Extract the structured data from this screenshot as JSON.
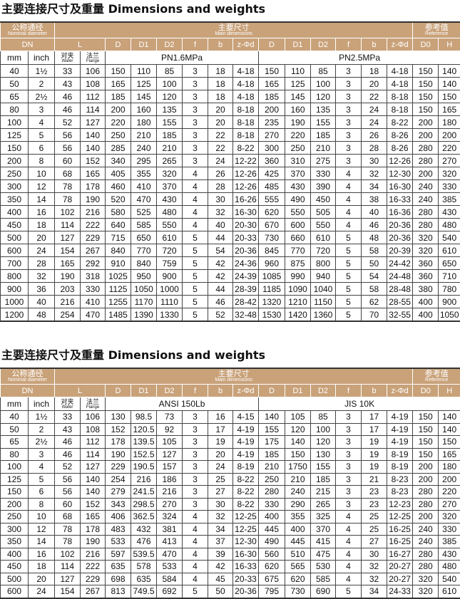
{
  "table1": {
    "title": "主要连接尺寸及重量 Dimensions and weights",
    "header": {
      "nominal_cn": "公称通径",
      "nominal_en": "Nominal diameter",
      "main_cn": "主要尺寸",
      "main_en": "Main dimensions",
      "ref_cn": "参考值",
      "ref_en": "Reference",
      "dn": "DN",
      "l": "L",
      "cols": [
        "D",
        "D1",
        "D2",
        "f",
        "b",
        "z-Φd",
        "D",
        "D1",
        "D2",
        "f",
        "b",
        "z-Φd",
        "D0",
        "H"
      ],
      "mm": "mm",
      "inch": "inch",
      "wafer_cn": "对夹",
      "wafer_en": "Wafer",
      "flange_cn": "法兰",
      "flange_en": "Flange",
      "std_a": "PN1.6MPa",
      "std_b": "PN2.5MPa"
    },
    "rows": [
      [
        "40",
        "1½",
        "33",
        "106",
        "150",
        "110",
        "85",
        "3",
        "18",
        "4-18",
        "150",
        "110",
        "85",
        "3",
        "18",
        "4-18",
        "150",
        "140"
      ],
      [
        "50",
        "2",
        "43",
        "108",
        "165",
        "125",
        "100",
        "3",
        "18",
        "4-18",
        "165",
        "125",
        "100",
        "3",
        "20",
        "4-18",
        "150",
        "140"
      ],
      [
        "65",
        "2½",
        "46",
        "112",
        "185",
        "145",
        "120",
        "3",
        "18",
        "4-18",
        "185",
        "145",
        "120",
        "3",
        "22",
        "8-18",
        "150",
        "150"
      ],
      [
        "80",
        "3",
        "46",
        "114",
        "200",
        "160",
        "135",
        "3",
        "20",
        "8-18",
        "200",
        "160",
        "135",
        "3",
        "24",
        "8-18",
        "150",
        "165"
      ],
      [
        "100",
        "4",
        "52",
        "127",
        "220",
        "180",
        "155",
        "3",
        "20",
        "8-18",
        "235",
        "190",
        "155",
        "3",
        "24",
        "8-22",
        "200",
        "180"
      ],
      [
        "125",
        "5",
        "56",
        "140",
        "250",
        "210",
        "185",
        "3",
        "22",
        "8-18",
        "270",
        "220",
        "185",
        "3",
        "26",
        "8-26",
        "200",
        "200"
      ],
      [
        "150",
        "6",
        "56",
        "140",
        "285",
        "240",
        "210",
        "3",
        "22",
        "8-22",
        "300",
        "250",
        "210",
        "3",
        "28",
        "8-26",
        "280",
        "220"
      ],
      [
        "200",
        "8",
        "60",
        "152",
        "340",
        "295",
        "265",
        "3",
        "24",
        "12-22",
        "360",
        "310",
        "275",
        "3",
        "30",
        "12-26",
        "280",
        "270"
      ],
      [
        "250",
        "10",
        "68",
        "165",
        "405",
        "355",
        "320",
        "4",
        "26",
        "12-26",
        "425",
        "370",
        "330",
        "4",
        "32",
        "12-30",
        "200",
        "320"
      ],
      [
        "300",
        "12",
        "78",
        "178",
        "460",
        "410",
        "370",
        "4",
        "28",
        "12-26",
        "485",
        "430",
        "390",
        "4",
        "34",
        "16-30",
        "240",
        "330"
      ],
      [
        "350",
        "14",
        "78",
        "190",
        "520",
        "470",
        "430",
        "4",
        "30",
        "16-26",
        "555",
        "490",
        "450",
        "4",
        "38",
        "16-33",
        "240",
        "385"
      ],
      [
        "400",
        "16",
        "102",
        "216",
        "580",
        "525",
        "480",
        "4",
        "32",
        "16-30",
        "620",
        "550",
        "505",
        "4",
        "40",
        "16-36",
        "280",
        "430"
      ],
      [
        "450",
        "18",
        "114",
        "222",
        "640",
        "585",
        "550",
        "4",
        "40",
        "20-30",
        "670",
        "600",
        "550",
        "4",
        "46",
        "20-36",
        "280",
        "480"
      ],
      [
        "500",
        "20",
        "127",
        "229",
        "715",
        "650",
        "610",
        "5",
        "44",
        "20-33",
        "730",
        "660",
        "610",
        "5",
        "48",
        "20-36",
        "320",
        "540"
      ],
      [
        "600",
        "24",
        "154",
        "267",
        "840",
        "770",
        "720",
        "5",
        "54",
        "20-36",
        "845",
        "770",
        "720",
        "5",
        "58",
        "20-39",
        "320",
        "610"
      ],
      [
        "700",
        "28",
        "165",
        "292",
        "910",
        "840",
        "759",
        "5",
        "42",
        "24-36",
        "960",
        "875",
        "800",
        "5",
        "50",
        "24-42",
        "360",
        "650"
      ],
      [
        "800",
        "32",
        "190",
        "318",
        "1025",
        "950",
        "900",
        "5",
        "42",
        "24-39",
        "1085",
        "990",
        "940",
        "5",
        "54",
        "24-48",
        "360",
        "710"
      ],
      [
        "900",
        "36",
        "203",
        "330",
        "1125",
        "1050",
        "1000",
        "5",
        "44",
        "28-39",
        "1185",
        "1090",
        "1040",
        "5",
        "58",
        "28-48",
        "380",
        "780"
      ],
      [
        "1000",
        "40",
        "216",
        "410",
        "1255",
        "1170",
        "1110",
        "5",
        "46",
        "28-42",
        "1320",
        "1210",
        "1150",
        "5",
        "62",
        "28-55",
        "400",
        "900"
      ],
      [
        "1200",
        "48",
        "254",
        "470",
        "1485",
        "1390",
        "1330",
        "5",
        "52",
        "32-48",
        "1530",
        "1420",
        "1360",
        "5",
        "70",
        "32-55",
        "400",
        "1050"
      ]
    ]
  },
  "table2": {
    "title": "主要连接尺寸及重量 Dimensions and weights",
    "header": {
      "nominal_cn": "公称通径",
      "nominal_en": "Nominal diameter",
      "main_cn": "主要尺寸",
      "main_en": "Main dimensions",
      "ref_cn": "参考值",
      "ref_en": "Reference",
      "dn": "DN",
      "l": "L",
      "cols": [
        "D",
        "D1",
        "D2",
        "f",
        "b",
        "z-Φd",
        "D",
        "D1",
        "D2",
        "f",
        "b",
        "z-Φd",
        "D0",
        "H"
      ],
      "mm": "mm",
      "inch": "inch",
      "wafer_cn": "对夹",
      "wafer_en": "Wafer",
      "flange_cn": "法兰",
      "flange_en": "Flange",
      "std_a": "ANSI 150Lb",
      "std_b": "JIS 10K"
    },
    "rows": [
      [
        "40",
        "1½",
        "33",
        "106",
        "130",
        "98.5",
        "73",
        "3",
        "16",
        "4-15",
        "140",
        "105",
        "85",
        "3",
        "17",
        "4-19",
        "150",
        "140"
      ],
      [
        "50",
        "2",
        "43",
        "108",
        "152",
        "120.5",
        "92",
        "3",
        "17",
        "4-19",
        "155",
        "120",
        "100",
        "3",
        "17",
        "4-19",
        "150",
        "140"
      ],
      [
        "65",
        "2½",
        "46",
        "112",
        "178",
        "139.5",
        "105",
        "3",
        "19",
        "4-19",
        "175",
        "140",
        "120",
        "3",
        "19",
        "4-19",
        "150",
        "150"
      ],
      [
        "80",
        "3",
        "46",
        "114",
        "190",
        "152.5",
        "127",
        "3",
        "20",
        "4-19",
        "185",
        "150",
        "130",
        "3",
        "19",
        "8-19",
        "150",
        "165"
      ],
      [
        "100",
        "4",
        "52",
        "127",
        "229",
        "190.5",
        "157",
        "3",
        "24",
        "8-19",
        "210",
        "1750",
        "155",
        "3",
        "19",
        "8-19",
        "200",
        "180"
      ],
      [
        "125",
        "5",
        "56",
        "140",
        "254",
        "216",
        "186",
        "3",
        "25",
        "8-22",
        "250",
        "210",
        "185",
        "3",
        "21",
        "8-23",
        "200",
        "200"
      ],
      [
        "150",
        "6",
        "56",
        "140",
        "279",
        "241.5",
        "216",
        "3",
        "27",
        "8-22",
        "280",
        "240",
        "215",
        "3",
        "23",
        "8-23",
        "280",
        "220"
      ],
      [
        "200",
        "8",
        "60",
        "152",
        "343",
        "298.5",
        "270",
        "3",
        "30",
        "8-22",
        "330",
        "290",
        "265",
        "3",
        "23",
        "12-23",
        "280",
        "270"
      ],
      [
        "250",
        "10",
        "68",
        "165",
        "406",
        "362.5",
        "324",
        "4",
        "32",
        "12-25",
        "400",
        "355",
        "325",
        "4",
        "25",
        "12-25",
        "200",
        "320"
      ],
      [
        "300",
        "12",
        "78",
        "178",
        "483",
        "432",
        "381",
        "4",
        "34",
        "12-25",
        "445",
        "400",
        "370",
        "4",
        "25",
        "16-25",
        "240",
        "330"
      ],
      [
        "350",
        "14",
        "78",
        "190",
        "533",
        "476",
        "413",
        "4",
        "37",
        "12-30",
        "490",
        "445",
        "415",
        "4",
        "27",
        "16-25",
        "240",
        "385"
      ],
      [
        "400",
        "16",
        "102",
        "216",
        "597",
        "539.5",
        "470",
        "4",
        "39",
        "16-30",
        "560",
        "510",
        "475",
        "4",
        "30",
        "16-27",
        "280",
        "430"
      ],
      [
        "450",
        "18",
        "114",
        "222",
        "635",
        "578",
        "533",
        "4",
        "42",
        "16-33",
        "620",
        "565",
        "530",
        "4",
        "32",
        "20-27",
        "280",
        "480"
      ],
      [
        "500",
        "20",
        "127",
        "229",
        "698",
        "635",
        "584",
        "4",
        "45",
        "20-33",
        "675",
        "620",
        "585",
        "4",
        "32",
        "20-27",
        "320",
        "540"
      ],
      [
        "600",
        "24",
        "154",
        "267",
        "813",
        "749.5",
        "692",
        "5",
        "50",
        "20-36",
        "795",
        "730",
        "690",
        "5",
        "34",
        "24-33",
        "320",
        "610"
      ]
    ]
  },
  "colors": {
    "header_bg": "#c9a27a",
    "header_text": "#ffffff"
  }
}
